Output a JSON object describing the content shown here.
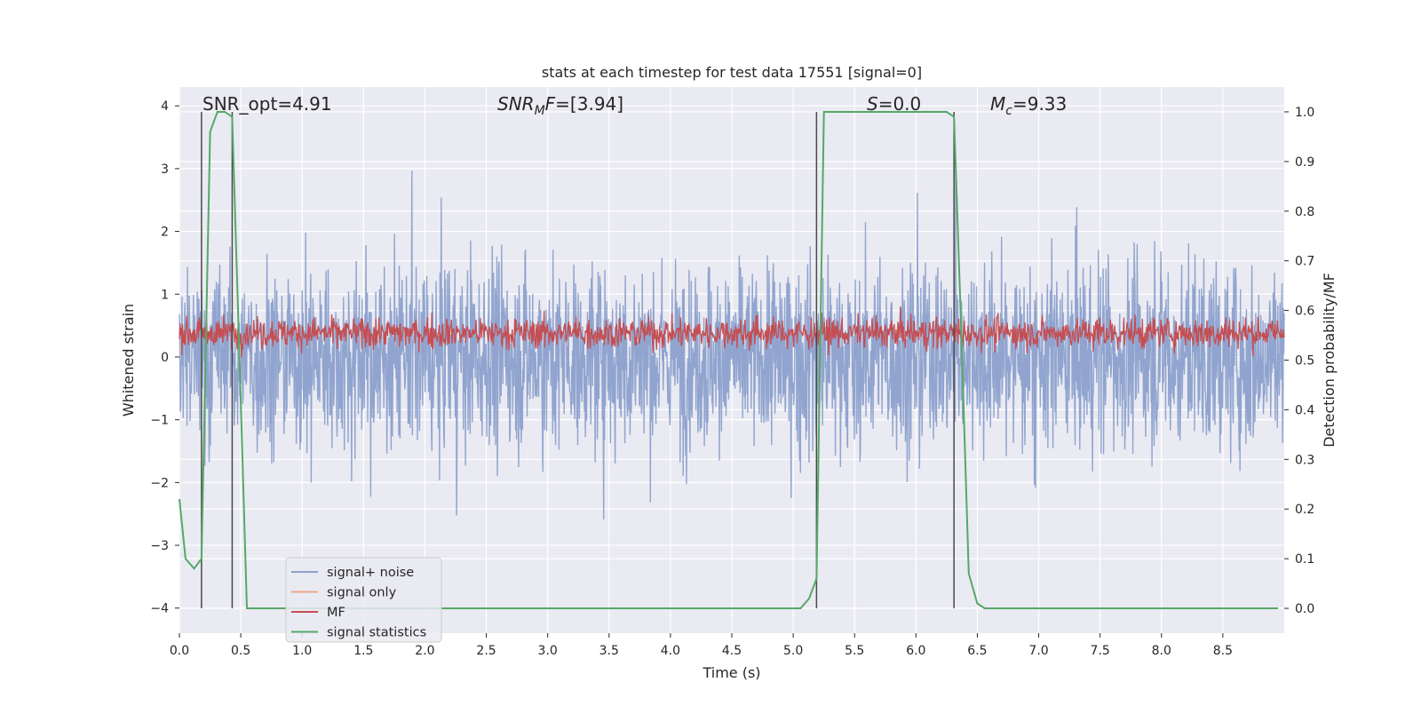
{
  "chart_data": {
    "type": "line",
    "title": "stats at each timestep for test data 17551 [signal=0]",
    "xlabel": "Time (s)",
    "ylabel": "Whitened strain",
    "y2label": "Detection probability/MF",
    "xlim": [
      0.0,
      9.0
    ],
    "ylim": [
      -4.4,
      4.3
    ],
    "y2lim": [
      -0.05,
      1.05
    ],
    "xticks": [
      "0.0",
      "0.5",
      "1.0",
      "1.5",
      "2.0",
      "2.5",
      "3.0",
      "3.5",
      "4.0",
      "4.5",
      "5.0",
      "5.5",
      "6.0",
      "6.5",
      "7.0",
      "7.5",
      "8.0",
      "8.5"
    ],
    "yticks": [
      "4",
      "3",
      "2",
      "1",
      "0",
      "−1",
      "−2",
      "−3",
      "−4"
    ],
    "y2ticks": [
      "1.0",
      "0.9",
      "0.8",
      "0.7",
      "0.6",
      "0.5",
      "0.4",
      "0.3",
      "0.2",
      "0.1",
      "0.0"
    ],
    "grid": true,
    "legend_position": "lower-left",
    "annotations": {
      "snr_opt": "SNR_opt=4.91",
      "snr_mf": "SNR_MF=[3.94]",
      "s_value": "S=0.0",
      "mc_value": "M_c=9.33"
    },
    "vertical_markers_x": [
      0.18,
      0.43,
      5.19,
      6.31
    ],
    "series": [
      {
        "name": "signal+ noise",
        "color": "#8ba0cc",
        "axis": "left",
        "description_type": "noisy whitened strain, roughly ±2.5 with spikes to ±4"
      },
      {
        "name": "signal only",
        "color": "#e9a888",
        "axis": "left",
        "values": []
      },
      {
        "name": "MF",
        "color": "#c44e52",
        "axis": "right",
        "description_type": "matched-filter output, roughly 0.50–0.62"
      },
      {
        "name": "signal statistics",
        "color": "#55a868",
        "axis": "right",
        "x": [
          0.0,
          0.05,
          0.12,
          0.18,
          0.25,
          0.31,
          0.37,
          0.43,
          0.49,
          0.55,
          0.62,
          5.06,
          5.13,
          5.19,
          5.25,
          5.31,
          6.25,
          6.31,
          6.37,
          6.43,
          6.5,
          6.56,
          8.95
        ],
        "y": [
          0.22,
          0.1,
          0.08,
          0.1,
          0.96,
          1.0,
          1.0,
          0.99,
          0.5,
          0.0,
          0.0,
          0.0,
          0.02,
          0.06,
          1.0,
          1.0,
          1.0,
          0.99,
          0.55,
          0.07,
          0.01,
          0.0,
          0.0
        ]
      }
    ]
  },
  "legend": {
    "items": [
      {
        "label": "signal+ noise",
        "color": "#8ba0cc"
      },
      {
        "label": "signal only",
        "color": "#e9a888"
      },
      {
        "label": "MF",
        "color": "#c44e52"
      },
      {
        "label": "signal statistics",
        "color": "#55a868"
      }
    ]
  }
}
